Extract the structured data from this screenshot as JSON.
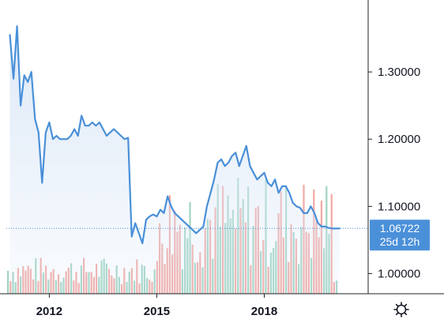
{
  "chart_data": {
    "type": "line",
    "x_ticks": [
      "2012",
      "2015",
      "2018"
    ],
    "y_ticks": [
      "1.30000",
      "1.20000",
      "1.10000",
      "1.00000"
    ],
    "y_tick_values": [
      1.3,
      1.2,
      1.1,
      1.0
    ],
    "ylim": [
      0.97,
      1.4
    ],
    "xlim": [
      2010.8,
      2020.9
    ],
    "grid": false,
    "price_line_color": "#4a90d9",
    "area_fill_color": "#dce8f7",
    "volume_up_color": "#9fd4c2",
    "volume_down_color": "#f2a9a4",
    "current_price": {
      "label": "1.06722",
      "value": 1.06722,
      "color": "#4a90d9"
    },
    "countdown": {
      "label": "25d 12h"
    },
    "series": [
      {
        "values_x": [
          2010.9,
          2011.0,
          2011.1,
          2011.2,
          2011.3,
          2011.4,
          2011.5,
          2011.6,
          2011.7,
          2011.8,
          2011.9,
          2012.0,
          2012.1,
          2012.2,
          2012.3,
          2012.4,
          2012.5,
          2012.6,
          2012.7,
          2012.8,
          2012.9,
          2013.0,
          2013.1,
          2013.2,
          2013.3,
          2013.4,
          2013.5,
          2013.6,
          2013.7,
          2013.8,
          2013.9,
          2014.0,
          2014.1,
          2014.2,
          2014.3,
          2014.4,
          2014.5,
          2014.6,
          2014.7,
          2014.8,
          2014.9,
          2015.0,
          2015.1,
          2015.2,
          2015.3,
          2015.4,
          2015.5,
          2015.6,
          2015.7,
          2015.8,
          2015.9,
          2016.0,
          2016.1,
          2016.2,
          2016.3,
          2016.4,
          2016.5,
          2016.6,
          2016.7,
          2016.8,
          2016.9,
          2017.0,
          2017.1,
          2017.2,
          2017.3,
          2017.4,
          2017.5,
          2017.6,
          2017.7,
          2017.8,
          2017.9,
          2018.0,
          2018.1,
          2018.2,
          2018.3,
          2018.4,
          2018.5,
          2018.6,
          2018.7,
          2018.8,
          2018.9,
          2019.0,
          2019.1,
          2019.2,
          2019.3,
          2019.4,
          2019.5,
          2019.6,
          2019.7,
          2019.8,
          2019.9,
          2020.0,
          2020.1
        ],
        "values": [
          1.355,
          1.29,
          1.368,
          1.25,
          1.295,
          1.285,
          1.3,
          1.23,
          1.21,
          1.135,
          1.21,
          1.225,
          1.2,
          1.205,
          1.2,
          1.2,
          1.2,
          1.205,
          1.215,
          1.205,
          1.235,
          1.22,
          1.22,
          1.225,
          1.22,
          1.225,
          1.215,
          1.205,
          1.21,
          1.215,
          1.21,
          1.205,
          1.2,
          1.202,
          1.055,
          1.075,
          1.06,
          1.045,
          1.08,
          1.085,
          1.088,
          1.085,
          1.095,
          1.09,
          1.115,
          1.1,
          1.09,
          1.085,
          1.08,
          1.075,
          1.07,
          1.065,
          1.06,
          1.065,
          1.07,
          1.1,
          1.12,
          1.14,
          1.165,
          1.17,
          1.16,
          1.165,
          1.175,
          1.18,
          1.16,
          1.175,
          1.19,
          1.16,
          1.15,
          1.14,
          1.145,
          1.15,
          1.135,
          1.13,
          1.14,
          1.12,
          1.13,
          1.13,
          1.12,
          1.105,
          1.1,
          1.098,
          1.09,
          1.09,
          1.1,
          1.09,
          1.075,
          1.07,
          1.07,
          1.068,
          1.067,
          1.067,
          1.067
        ]
      }
    ]
  }
}
